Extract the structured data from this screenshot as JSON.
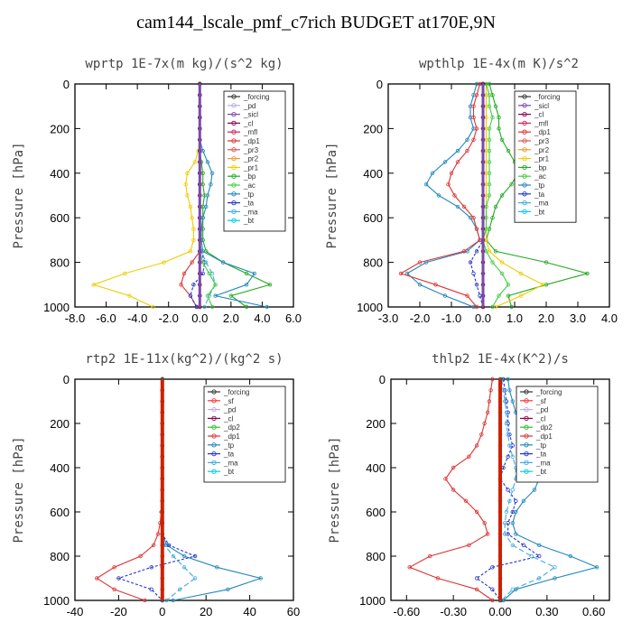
{
  "title": "cam144_lscale_pmf_c7rich  BUDGET at170E,9N",
  "colors": {
    "_forcing": "#333333",
    "_pd": "#bbaaee",
    "_sicl": "#7a4aaa",
    "_cl": "#880055",
    "_mfl": "#cc2255",
    "_dp1": "#dd3333",
    "_pr3": "#dd5555",
    "_pr2": "#ee9933",
    "_pr1": "#eecc00",
    "_bp": "#22aa22",
    "_ac": "#44cc44",
    "_tp": "#2288bb",
    "_ta": "#2233cc",
    "_ma": "#44aadd",
    "_bt": "#00ccee",
    "_sf": "#ff3333",
    "_dp2": "#33bb33"
  },
  "chart_data": [
    {
      "type": "line",
      "title": "wprtp   1E-7x(m kg)/(s^2 kg)",
      "ylabel": "Pressure [hPa]",
      "xlim": [
        -8,
        6
      ],
      "ylim": [
        1000,
        0
      ],
      "xticks": [
        "-8.0",
        "-6.0",
        "-4.0",
        "-2.0",
        "0.0",
        "2.0",
        "4.0",
        "6.0"
      ],
      "xtickvals": [
        -8,
        -6,
        -4,
        -2,
        0,
        2,
        4,
        6
      ],
      "yticks": [
        "0",
        "200",
        "400",
        "600",
        "800",
        "1000"
      ],
      "ytickvals": [
        0,
        200,
        400,
        600,
        800,
        1000
      ],
      "legend": [
        "_forcing",
        "_pd",
        "_sicl",
        "_cl",
        "_mfl",
        "_dp1",
        "_pr3",
        "_pr2",
        "_pr1",
        "_bp",
        "_ac",
        "_tp",
        "_ta",
        "_ma",
        "_bt"
      ],
      "p": [
        0,
        50,
        100,
        150,
        200,
        250,
        300,
        350,
        400,
        450,
        500,
        550,
        600,
        650,
        700,
        750,
        800,
        850,
        900,
        950,
        1000
      ],
      "series": [
        {
          "name": "_pr1",
          "values": [
            0,
            0,
            0,
            0,
            0,
            0,
            -0.1,
            -0.3,
            -0.8,
            -0.9,
            -0.8,
            -0.6,
            -0.5,
            -0.4,
            -0.4,
            -0.6,
            -2.3,
            -4.8,
            -6.8,
            -4.5,
            -3.0
          ]
        },
        {
          "name": "_bp",
          "values": [
            0,
            0,
            0,
            0,
            0,
            0,
            0,
            0.1,
            0.2,
            0.2,
            0.3,
            0.2,
            0.2,
            0.2,
            0.2,
            0.4,
            1.5,
            3.0,
            4.5,
            2.0,
            3.0
          ]
        },
        {
          "name": "_tp",
          "values": [
            0,
            0,
            0,
            0,
            0,
            0,
            0.2,
            0.5,
            0.8,
            0.7,
            0.5,
            0.4,
            0.2,
            0.1,
            0.1,
            0.2,
            1.5,
            3.5,
            3.0,
            1.0,
            4.3
          ]
        },
        {
          "name": "_dp1",
          "values": [
            0,
            0,
            0,
            0,
            0,
            0,
            0,
            0,
            0,
            0,
            0,
            0,
            0,
            0,
            0,
            0,
            -0.5,
            -1.0,
            -1.2,
            -0.6,
            -0.2
          ]
        },
        {
          "name": "_ta",
          "values": [
            0,
            0,
            0,
            0,
            0,
            0,
            0,
            0,
            0,
            0,
            0,
            0,
            0,
            0,
            0,
            0.1,
            0.3,
            0.2,
            -0.4,
            -0.6,
            -0.2
          ]
        },
        {
          "name": "_ma",
          "values": [
            0,
            0,
            0,
            0,
            0,
            0,
            0,
            0,
            0,
            0,
            0,
            0,
            0,
            0,
            0,
            0.1,
            0.4,
            0.8,
            1.0,
            0.6,
            0.3
          ]
        },
        {
          "name": "_ac",
          "values": [
            0,
            0,
            0,
            0,
            0,
            0,
            0,
            0,
            0,
            0,
            0,
            0,
            0,
            0,
            0,
            0,
            0.2,
            0.6,
            1.0,
            0.5,
            0.8
          ]
        },
        {
          "name": "_forcing",
          "values": [
            0,
            0,
            0,
            0,
            0,
            0,
            0,
            0,
            0,
            0,
            0,
            0,
            0,
            0,
            0,
            0,
            0,
            0,
            0,
            0,
            0
          ]
        },
        {
          "name": "_cl",
          "values": [
            0,
            0,
            0,
            0,
            0,
            0,
            0,
            0,
            0,
            0,
            0,
            0,
            0,
            0,
            0,
            0,
            0,
            0,
            0,
            0,
            0
          ]
        }
      ]
    },
    {
      "type": "line",
      "title": "wpthlp   1E-4x(m K)/s^2",
      "ylabel": "Pressure [hPa]",
      "xlim": [
        -3,
        4
      ],
      "ylim": [
        1000,
        0
      ],
      "xticks": [
        "-3.0",
        "-2.0",
        "-1.0",
        "0.0",
        "1.0",
        "2.0",
        "3.0",
        "4.0"
      ],
      "xtickvals": [
        -3,
        -2,
        -1,
        0,
        1,
        2,
        3,
        4
      ],
      "yticks": [
        "0",
        "200",
        "400",
        "600",
        "800",
        "1000"
      ],
      "ytickvals": [
        0,
        200,
        400,
        600,
        800,
        1000
      ],
      "legend": [
        "_forcing",
        "_sicl",
        "_cl",
        "_mfl",
        "_dp1",
        "_pr3",
        "_pr2",
        "_pr1",
        "_bp",
        "_ac",
        "_tp",
        "_ta",
        "_ma",
        "_bt"
      ],
      "p": [
        0,
        50,
        100,
        150,
        200,
        250,
        300,
        350,
        400,
        450,
        500,
        550,
        600,
        650,
        700,
        750,
        800,
        850,
        900,
        950,
        1000
      ],
      "series": [
        {
          "name": "_tp",
          "values": [
            -0.2,
            -0.3,
            -0.4,
            -0.4,
            -0.3,
            -0.5,
            -0.8,
            -1.2,
            -1.6,
            -1.8,
            -1.4,
            -0.8,
            -0.4,
            -0.2,
            -0.1,
            -0.5,
            -1.8,
            -2.4,
            -2.0,
            -1.2,
            -0.3
          ]
        },
        {
          "name": "_dp1",
          "values": [
            -0.1,
            -0.2,
            -0.3,
            -0.3,
            -0.2,
            -0.3,
            -0.5,
            -0.8,
            -1.0,
            -1.1,
            -0.9,
            -0.6,
            -0.3,
            -0.2,
            -0.1,
            -0.6,
            -2.0,
            -2.6,
            -1.5,
            -0.5,
            -0.2
          ]
        },
        {
          "name": "_bp",
          "values": [
            0.2,
            0.3,
            0.4,
            0.5,
            0.5,
            0.6,
            0.8,
            1.0,
            1.1,
            0.9,
            0.6,
            0.4,
            0.3,
            0.2,
            0.1,
            0.4,
            2.0,
            3.3,
            2.0,
            0.8,
            0.9
          ]
        },
        {
          "name": "_pr1",
          "values": [
            0.1,
            0.1,
            0.1,
            0.1,
            0.1,
            0.1,
            0.1,
            0.1,
            0.1,
            0.1,
            0.1,
            0.1,
            0.1,
            0.1,
            0.1,
            0.2,
            0.6,
            1.2,
            1.9,
            1.2,
            0.4
          ]
        },
        {
          "name": "_ta",
          "values": [
            0,
            0,
            0,
            0,
            0,
            0,
            0,
            0,
            0,
            0,
            0,
            0,
            0,
            0,
            0,
            -0.2,
            -0.4,
            -0.3,
            -0.2,
            -0.1,
            0
          ]
        },
        {
          "name": "_ac",
          "values": [
            0.1,
            0.2,
            0.2,
            0.3,
            0.2,
            0.2,
            0.2,
            0.2,
            0.2,
            0.2,
            0.2,
            0.1,
            0.1,
            0.1,
            0,
            0.1,
            0.3,
            0.6,
            0.8,
            0.5,
            0.3
          ]
        },
        {
          "name": "_forcing",
          "values": [
            0,
            0,
            0,
            0,
            0,
            0,
            0,
            0,
            0,
            0,
            0,
            0,
            0,
            0,
            0,
            0,
            0,
            0,
            0,
            0,
            0
          ]
        },
        {
          "name": "_cl",
          "values": [
            0,
            0,
            0,
            0,
            0,
            0,
            0,
            0,
            0,
            0,
            0,
            0,
            0,
            0,
            0,
            0,
            0,
            0,
            0,
            0,
            0
          ]
        }
      ]
    },
    {
      "type": "line",
      "title": "rtp2   1E-11x(kg^2)/(kg^2 s)",
      "ylabel": "Pressure [hPa]",
      "xlim": [
        -40,
        60
      ],
      "ylim": [
        1000,
        0
      ],
      "xticks": [
        "-40",
        "-20",
        "0",
        "20",
        "40",
        "60"
      ],
      "xtickvals": [
        -40,
        -20,
        0,
        20,
        40,
        60
      ],
      "yticks": [
        "0",
        "200",
        "400",
        "600",
        "800",
        "1000"
      ],
      "ytickvals": [
        0,
        200,
        400,
        600,
        800,
        1000
      ],
      "legend": [
        "_forcing",
        "_sf",
        "_pd",
        "_cl",
        "_dp2",
        "_dp1",
        "_tp",
        "_ta",
        "_ma",
        "_bt"
      ],
      "p": [
        0,
        50,
        100,
        150,
        200,
        250,
        300,
        350,
        400,
        450,
        500,
        550,
        600,
        650,
        700,
        750,
        800,
        850,
        900,
        950,
        1000
      ],
      "series": [
        {
          "name": "_dp1",
          "values": [
            0,
            0,
            0,
            0,
            0,
            0,
            0,
            0,
            0,
            0,
            0,
            0,
            -0.5,
            -1,
            -2,
            -4,
            -10,
            -22,
            -30,
            -22,
            -8
          ]
        },
        {
          "name": "_tp",
          "values": [
            0,
            0,
            0,
            0,
            0,
            0,
            0,
            0,
            0,
            0,
            0,
            0,
            0,
            0,
            0,
            2,
            10,
            25,
            45,
            30,
            5
          ]
        },
        {
          "name": "_ta",
          "values": [
            0,
            0,
            0,
            0,
            0,
            0,
            0,
            0,
            0,
            0,
            0,
            0,
            0,
            0,
            0,
            3,
            15,
            -5,
            -20,
            -5,
            0
          ]
        },
        {
          "name": "_ma",
          "values": [
            0,
            0,
            0,
            0,
            0,
            0,
            0,
            0,
            0,
            0,
            0,
            0,
            0,
            0,
            0,
            1,
            5,
            10,
            15,
            8,
            2
          ]
        },
        {
          "name": "_forcing",
          "values": [
            0,
            0,
            0,
            0,
            0,
            0,
            0,
            0,
            0,
            0,
            0,
            0,
            0,
            0,
            0,
            0,
            0,
            0,
            0,
            0,
            0
          ]
        }
      ]
    },
    {
      "type": "line",
      "title": "thlp2   1E-4x(K^2)/s",
      "ylabel": "Pressure [hPa]",
      "xlim": [
        -0.7,
        0.7
      ],
      "ylim": [
        1000,
        0
      ],
      "xticks": [
        "-0.60",
        "-0.30",
        "0.00",
        "0.30",
        "0.60"
      ],
      "xtickvals": [
        -0.6,
        -0.3,
        0,
        0.3,
        0.6
      ],
      "yticks": [
        "0",
        "200",
        "400",
        "600",
        "800",
        "1000"
      ],
      "ytickvals": [
        0,
        200,
        400,
        600,
        800,
        1000
      ],
      "legend": [
        "_forcing",
        "_sf",
        "_pd",
        "_cl",
        "_dp2",
        "_dp1",
        "_tp",
        "_ta",
        "_ma",
        "_bt"
      ],
      "p": [
        0,
        50,
        100,
        150,
        200,
        250,
        300,
        350,
        400,
        450,
        500,
        550,
        600,
        650,
        700,
        750,
        800,
        850,
        900,
        950,
        1000
      ],
      "series": [
        {
          "name": "_dp1",
          "values": [
            -0.05,
            -0.06,
            -0.07,
            -0.08,
            -0.1,
            -0.12,
            -0.15,
            -0.2,
            -0.3,
            -0.35,
            -0.3,
            -0.22,
            -0.15,
            -0.1,
            -0.08,
            -0.2,
            -0.45,
            -0.58,
            -0.4,
            -0.15,
            -0.05
          ]
        },
        {
          "name": "_tp",
          "values": [
            0.05,
            0.06,
            0.08,
            0.1,
            0.12,
            0.15,
            0.18,
            0.2,
            0.25,
            0.25,
            0.22,
            0.15,
            0.1,
            0.08,
            0.1,
            0.25,
            0.45,
            0.62,
            0.35,
            0.1,
            0.02
          ]
        },
        {
          "name": "_ta",
          "values": [
            0.02,
            0.03,
            0.04,
            0.05,
            0.05,
            0.06,
            0.08,
            0.05,
            0.02,
            0.0,
            0.05,
            0.1,
            0.08,
            0.05,
            0.05,
            0.15,
            0.25,
            -0.05,
            -0.15,
            -0.05,
            0
          ]
        },
        {
          "name": "_ma",
          "values": [
            0.01,
            0.02,
            0.03,
            0.04,
            0.04,
            0.05,
            0.06,
            0.08,
            0.1,
            0.1,
            0.08,
            0.06,
            0.04,
            0.03,
            0.03,
            0.08,
            0.2,
            0.35,
            0.25,
            0.08,
            0.01
          ]
        },
        {
          "name": "_forcing",
          "values": [
            0,
            0,
            0,
            0,
            0,
            0,
            0,
            0,
            0,
            0,
            0,
            0,
            0,
            0,
            0,
            0,
            0,
            0,
            0,
            0,
            0
          ]
        }
      ]
    }
  ]
}
